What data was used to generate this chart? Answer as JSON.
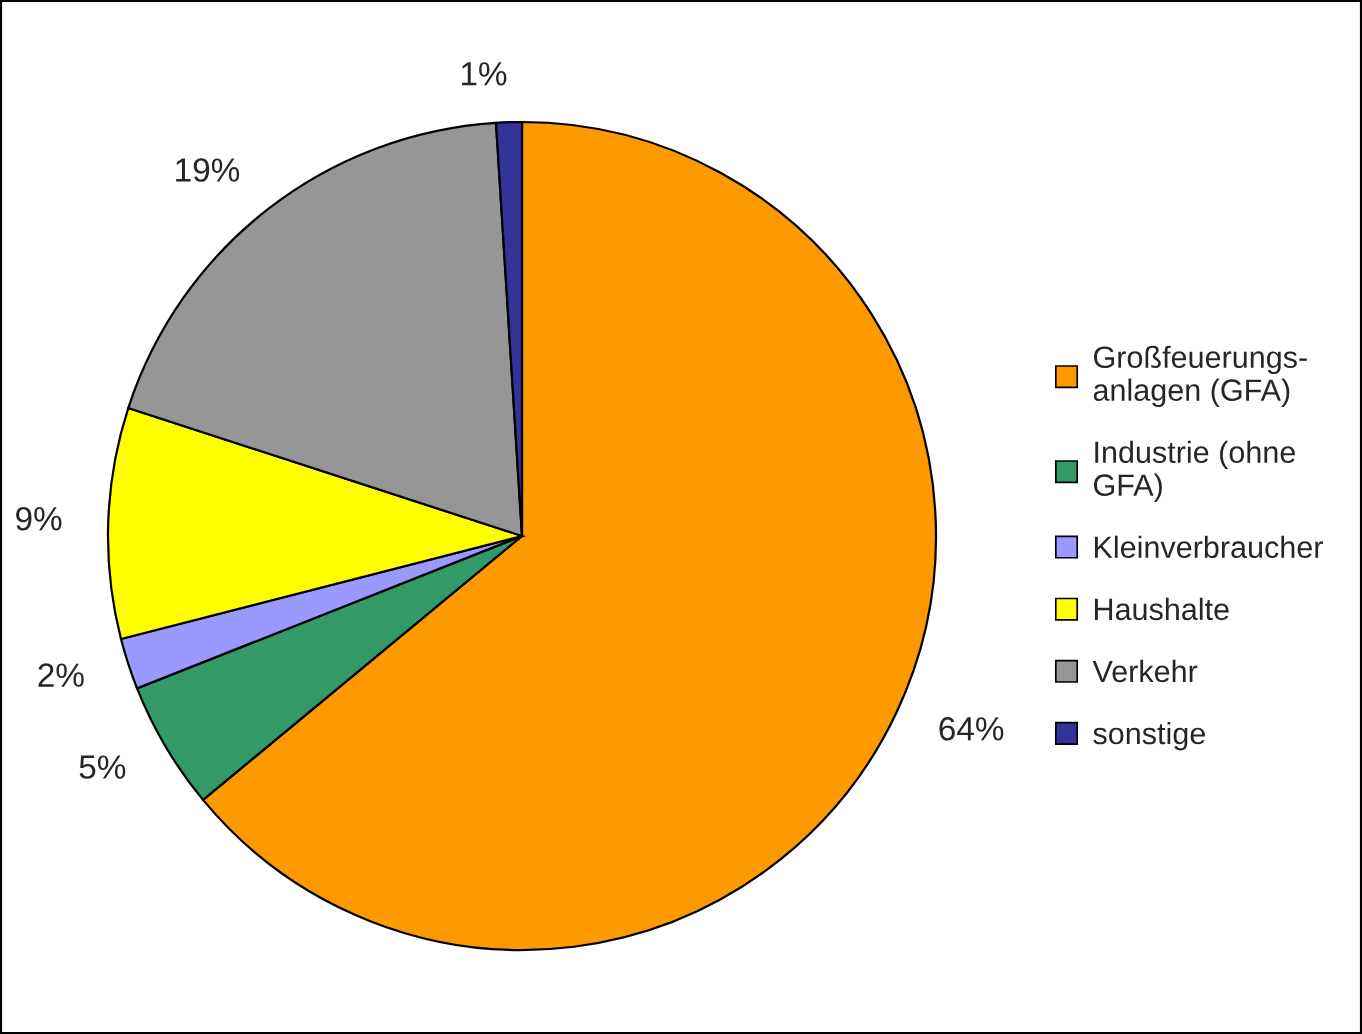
{
  "chart_data": {
    "type": "pie",
    "categories": [
      "Großfeuerungs-\nanlagen (GFA)",
      "Industrie (ohne\nGFA)",
      "Kleinverbraucher",
      "Haushalte",
      "Verkehr",
      "sonstige"
    ],
    "values": [
      64,
      5,
      2,
      9,
      19,
      1
    ],
    "value_labels": [
      "64%",
      "5%",
      "2%",
      "9%",
      "19%",
      "1%"
    ],
    "colors": [
      "#ff9900",
      "#339966",
      "#9999ff",
      "#ffff00",
      "#969696",
      "#333399"
    ],
    "legend": "right"
  }
}
